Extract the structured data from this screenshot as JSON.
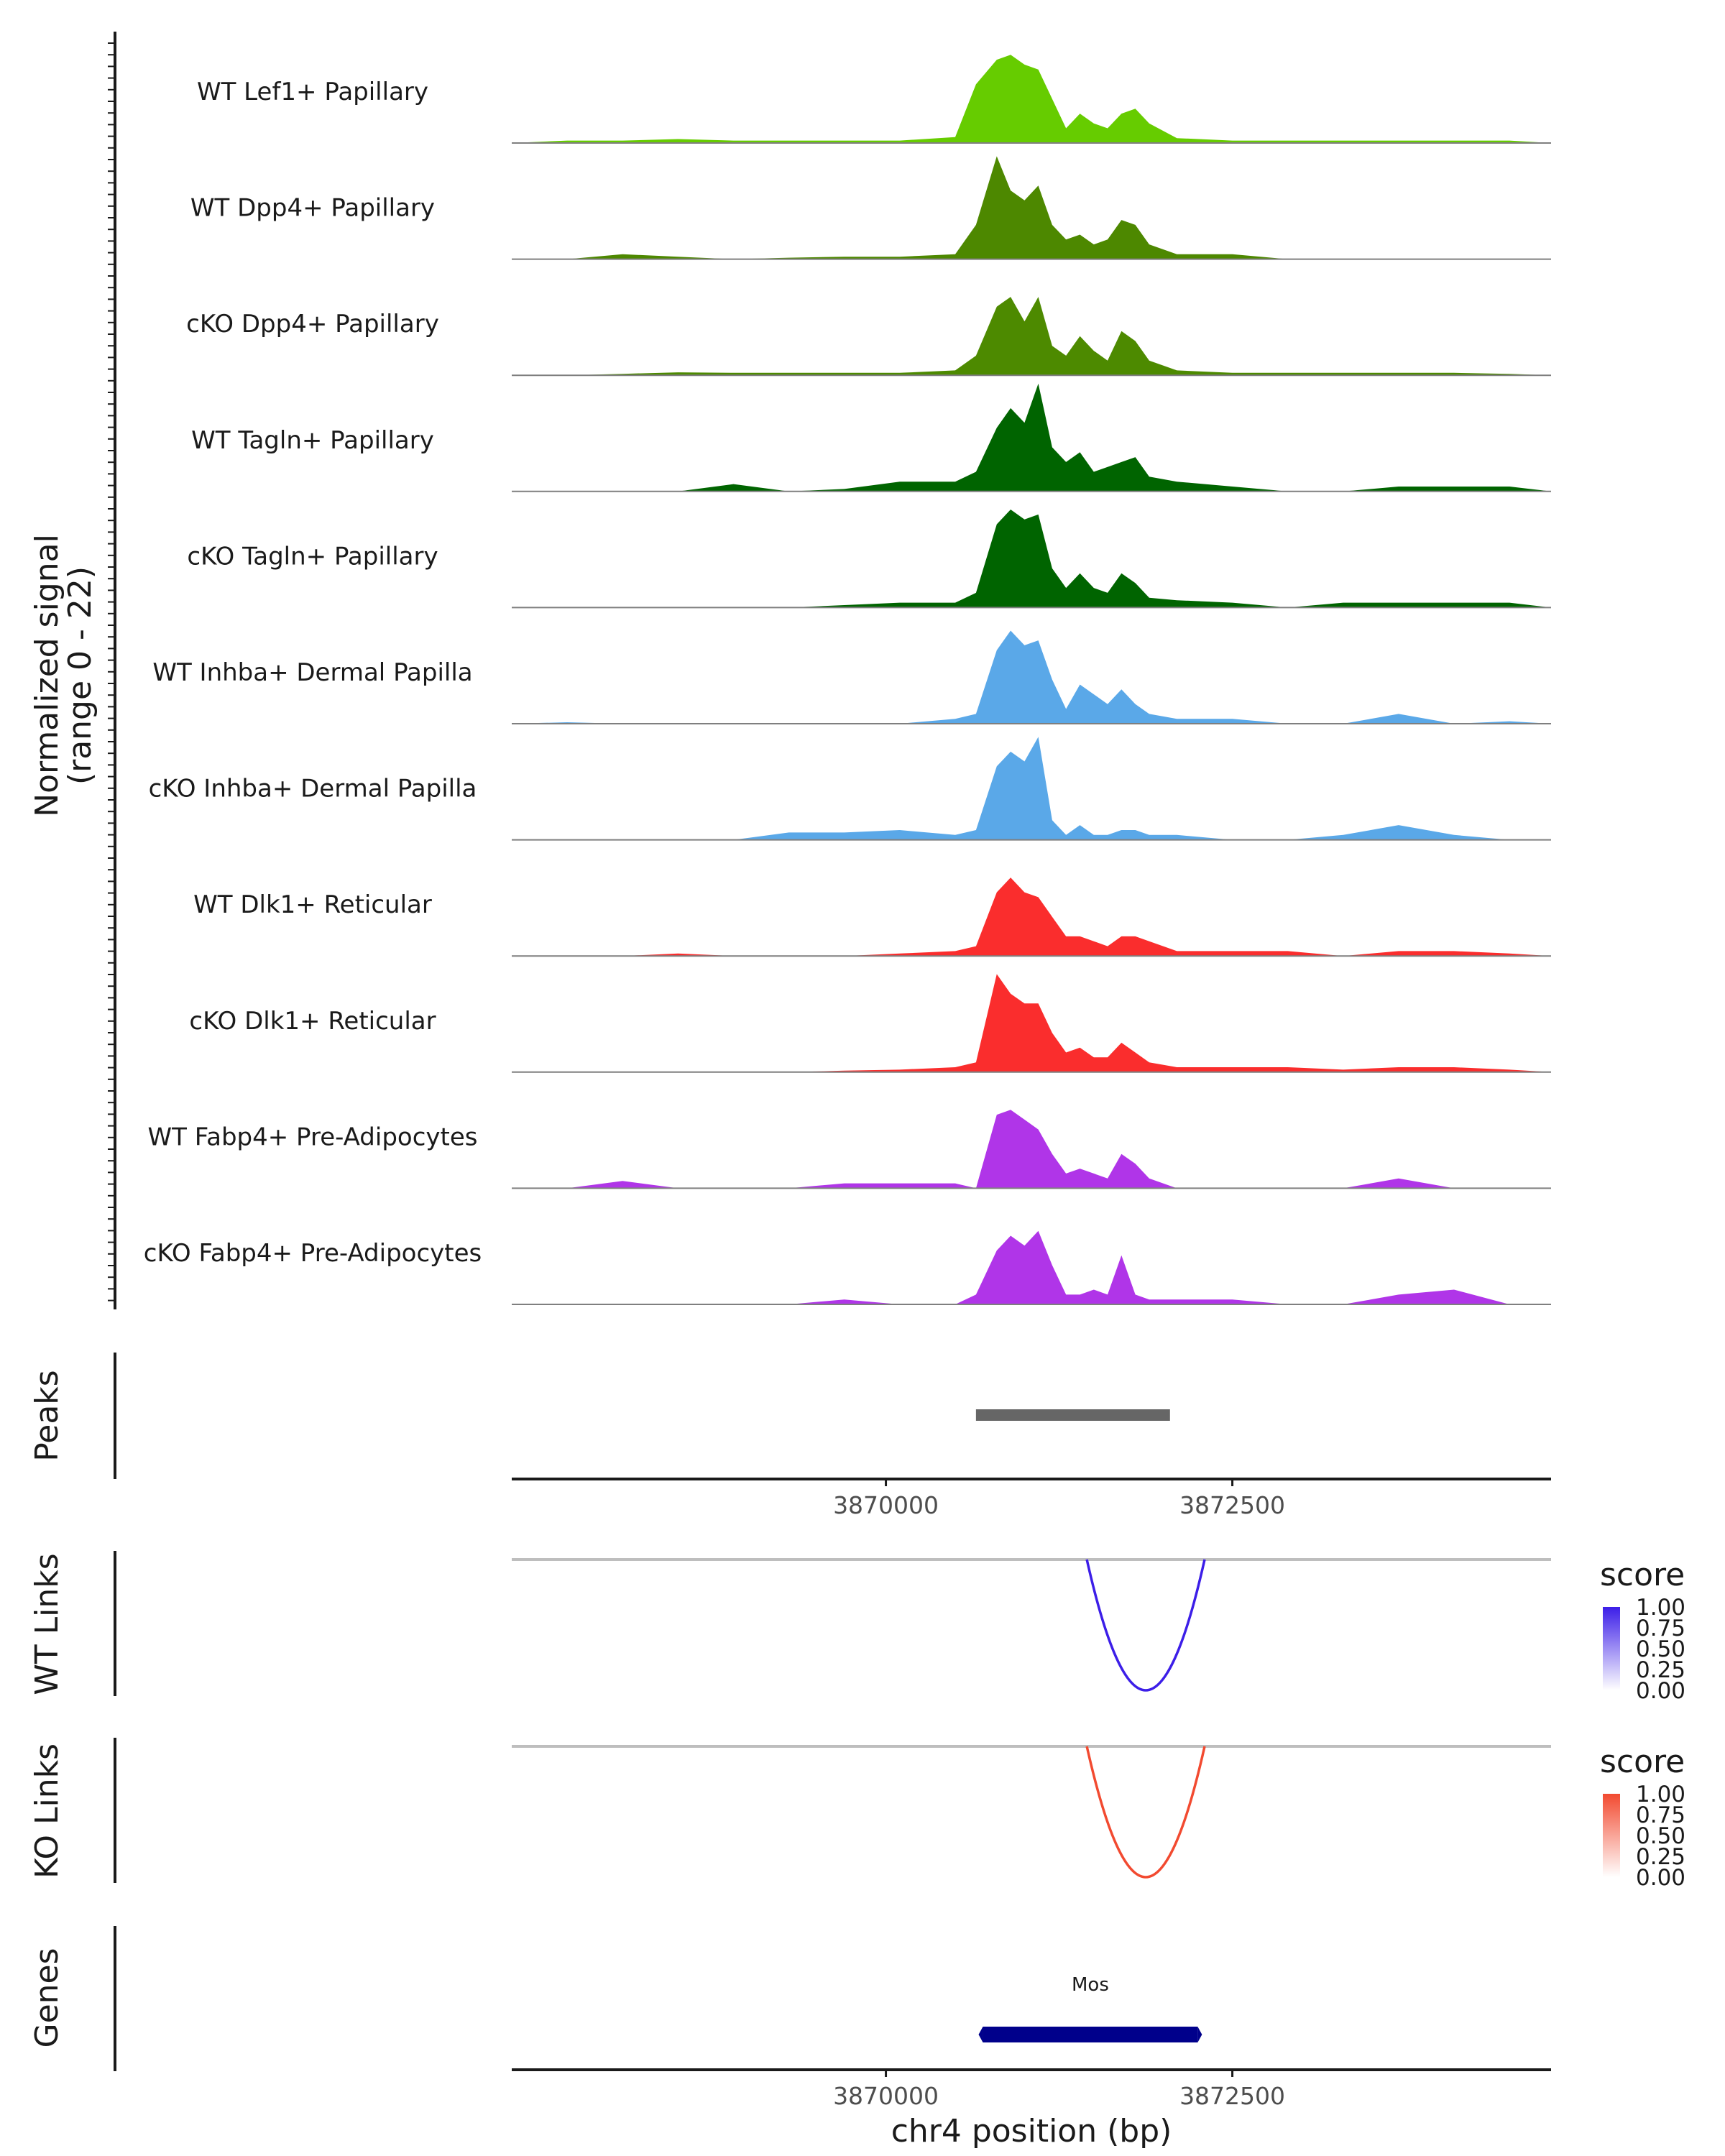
{
  "chart_data": {
    "type": "area",
    "region": "chr4",
    "xlim": [
      3867300,
      3874800
    ],
    "coverage": {
      "ylabel": "Normalized signal",
      "ylabel_range": "(range 0 - 22)",
      "ylim": [
        0,
        22
      ],
      "positions": [
        3867300,
        3867700,
        3868100,
        3868500,
        3868900,
        3869300,
        3869700,
        3870100,
        3870500,
        3870650,
        3870800,
        3870900,
        3871000,
        3871100,
        3871200,
        3871300,
        3871400,
        3871500,
        3871600,
        3871700,
        3871800,
        3871900,
        3872100,
        3872500,
        3872900,
        3873300,
        3873700,
        3874100,
        3874500,
        3874800
      ],
      "tracks": [
        {
          "name": "WT Lef1+ Papillary",
          "color": "#66cc00",
          "values": [
            0,
            0.5,
            0.5,
            0.8,
            0.5,
            0.5,
            0.5,
            0.5,
            1.2,
            12,
            17,
            18,
            16,
            15,
            9,
            3,
            6,
            4,
            3,
            6,
            7,
            4,
            1,
            0.5,
            0.5,
            0.5,
            0.5,
            0.5,
            0.5,
            0
          ]
        },
        {
          "name": "WT Dpp4+ Papillary",
          "color": "#4d8800",
          "values": [
            0,
            0,
            1,
            0.5,
            0,
            0.3,
            0.5,
            0.5,
            1,
            7,
            21,
            14,
            12,
            15,
            7,
            4,
            5,
            3,
            4,
            8,
            7,
            3,
            1,
            1,
            0,
            0,
            0,
            0,
            0,
            0
          ]
        },
        {
          "name": "cKO Dpp4+ Papillary",
          "color": "#4d8a00",
          "values": [
            0,
            0,
            0.3,
            0.6,
            0.5,
            0.5,
            0.5,
            0.5,
            1,
            4,
            14,
            16,
            11,
            16,
            6,
            4,
            8,
            5,
            3,
            9,
            7,
            3,
            1,
            0.5,
            0.5,
            0.5,
            0.5,
            0.5,
            0.3,
            0
          ]
        },
        {
          "name": "WT Tagln+ Papillary",
          "color": "#006400",
          "values": [
            0,
            0,
            0,
            0,
            1.5,
            0,
            0.5,
            2,
            2,
            4,
            13,
            17,
            14,
            22,
            9,
            6,
            8,
            4,
            5,
            6,
            7,
            3,
            2,
            1,
            0,
            0,
            1,
            1,
            1,
            0
          ]
        },
        {
          "name": "cKO Tagln+ Papillary",
          "color": "#006400",
          "values": [
            0,
            0,
            0,
            0,
            0,
            0,
            0.5,
            1,
            1,
            3,
            17,
            20,
            18,
            19,
            8,
            4,
            7,
            4,
            3,
            7,
            5,
            2,
            1.5,
            1,
            0,
            1,
            1,
            1,
            1,
            0
          ]
        },
        {
          "name": "WT Inhba+ Dermal Papilla",
          "color": "#5aa8e8",
          "values": [
            0,
            0.3,
            0,
            0,
            0,
            0,
            0,
            0,
            1,
            2,
            15,
            19,
            16,
            17,
            9,
            3,
            8,
            6,
            4,
            7,
            4,
            2,
            1,
            1,
            0,
            0,
            2,
            0,
            0.5,
            0
          ]
        },
        {
          "name": "cKO Inhba+ Dermal Papilla",
          "color": "#5aa8e8",
          "values": [
            0,
            0,
            0,
            0,
            0,
            1.5,
            1.5,
            2,
            1,
            2,
            15,
            18,
            16,
            21,
            4,
            1,
            3,
            1,
            1,
            2,
            2,
            1,
            1,
            0,
            0,
            1,
            3,
            1,
            0,
            0
          ]
        },
        {
          "name": "WT Dlk1+ Reticular",
          "color": "#fa2d2d",
          "values": [
            0,
            0,
            0,
            0.5,
            0,
            0,
            0,
            0.5,
            1,
            2,
            13,
            16,
            13,
            12,
            8,
            4,
            4,
            3,
            2,
            4,
            4,
            3,
            1,
            1,
            1,
            0,
            1,
            1,
            0.5,
            0
          ]
        },
        {
          "name": "cKO Dlk1+ Reticular",
          "color": "#fa2d2d",
          "values": [
            0,
            0,
            0,
            0,
            0,
            0,
            0.3,
            0.5,
            1,
            2,
            20,
            16,
            14,
            14,
            8,
            4,
            5,
            3,
            3,
            6,
            4,
            2,
            1,
            1,
            1,
            0.5,
            1,
            1,
            0.5,
            0
          ]
        },
        {
          "name": "WT Fabp4+ Pre-Adipocytes",
          "color": "#b035e8",
          "values": [
            0,
            0,
            1.5,
            0,
            0,
            0,
            1,
            1,
            1,
            0,
            15,
            16,
            14,
            12,
            7,
            3,
            4,
            3,
            2,
            7,
            5,
            2,
            0,
            0,
            0,
            0,
            2,
            0,
            0,
            0
          ]
        },
        {
          "name": "cKO Fabp4+ Pre-Adipocytes",
          "color": "#b035e8",
          "values": [
            0,
            0,
            0,
            0,
            0,
            0,
            1,
            0,
            0,
            2,
            11,
            14,
            12,
            15,
            8,
            2,
            2,
            3,
            2,
            10,
            2,
            1,
            1,
            1,
            0,
            0,
            2,
            3,
            0,
            0
          ]
        }
      ]
    },
    "peaks": {
      "label": "Peaks",
      "color": "#666666",
      "items": [
        {
          "start": 3870650,
          "end": 3872050
        }
      ]
    },
    "peaks_axis_ticks": [
      3870000,
      3872500
    ],
    "links": [
      {
        "label": "WT Links",
        "color": "#3c1ee8",
        "start": 3871450,
        "end": 3872300,
        "score": 1.0,
        "legend_title": "score",
        "legend_ticks": [
          "1.00",
          "0.75",
          "0.50",
          "0.25",
          "0.00"
        ],
        "legend_high": "#3c1ee8"
      },
      {
        "label": "KO Links",
        "color": "#f24a30",
        "start": 3871450,
        "end": 3872300,
        "score": 1.0,
        "legend_title": "score",
        "legend_ticks": [
          "1.00",
          "0.75",
          "0.50",
          "0.25",
          "0.00"
        ],
        "legend_high": "#f24a30"
      }
    ],
    "genes": {
      "label": "Genes",
      "color": "#00008b",
      "items": [
        {
          "name": "Mos",
          "start": 3870700,
          "end": 3872250
        }
      ]
    },
    "xlabel": "chr4 position (bp)",
    "xticks": [
      3870000,
      3872500
    ]
  }
}
